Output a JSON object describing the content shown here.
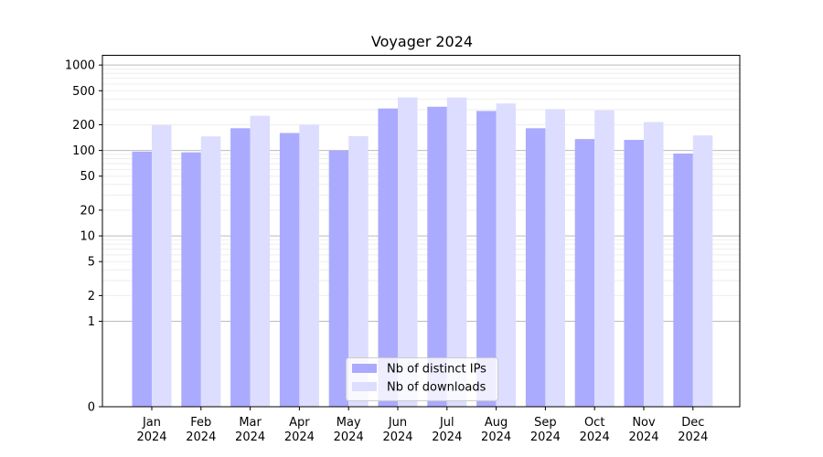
{
  "chart_data": {
    "type": "bar",
    "title": "Voyager 2024",
    "xlabel": "",
    "ylabel": "",
    "y_scale": "symlog",
    "ylim": [
      0,
      1300
    ],
    "y_ticks": [
      0,
      1,
      2,
      5,
      10,
      20,
      50,
      100,
      200,
      500,
      1000
    ],
    "grid": "horizontal",
    "legend_position": "bottom-center",
    "categories": [
      {
        "month": "Jan",
        "year": "2024"
      },
      {
        "month": "Feb",
        "year": "2024"
      },
      {
        "month": "Mar",
        "year": "2024"
      },
      {
        "month": "Apr",
        "year": "2024"
      },
      {
        "month": "May",
        "year": "2024"
      },
      {
        "month": "Jun",
        "year": "2024"
      },
      {
        "month": "Jul",
        "year": "2024"
      },
      {
        "month": "Aug",
        "year": "2024"
      },
      {
        "month": "Sep",
        "year": "2024"
      },
      {
        "month": "Oct",
        "year": "2024"
      },
      {
        "month": "Nov",
        "year": "2024"
      },
      {
        "month": "Dec",
        "year": "2024"
      }
    ],
    "series": [
      {
        "name": "Nb of distinct IPs",
        "color": "#aaaaff",
        "values": [
          97,
          95,
          182,
          160,
          100,
          310,
          325,
          290,
          182,
          136,
          133,
          92
        ]
      },
      {
        "name": "Nb of downloads",
        "color": "#ddddff",
        "values": [
          198,
          146,
          255,
          200,
          147,
          418,
          417,
          355,
          305,
          295,
          215,
          150
        ]
      }
    ]
  }
}
